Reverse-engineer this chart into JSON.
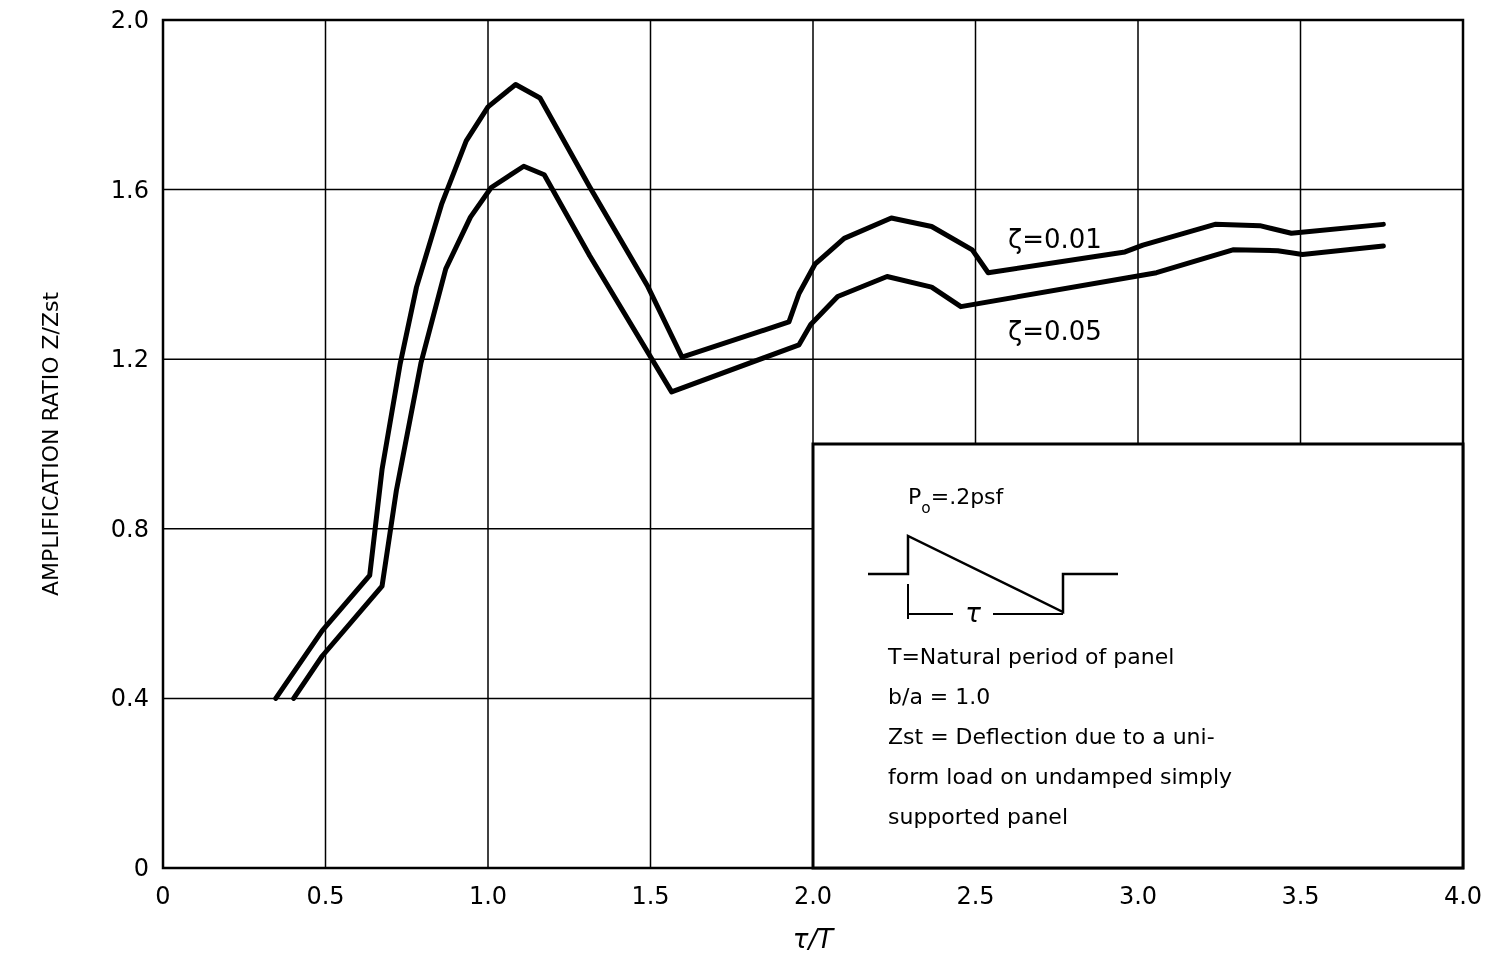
{
  "chart_data": {
    "type": "line",
    "xlabel": "τ/T",
    "ylabel": "AMPLIFICATION RATIO  Z/Zst",
    "xlim": [
      0,
      4
    ],
    "ylim": [
      0,
      2
    ],
    "xticks": [
      0,
      0.5,
      {
        "value": 1,
        "label": "1.0"
      },
      1.5,
      {
        "value": 2,
        "label": "2.0"
      },
      2.5,
      {
        "value": 3,
        "label": "3.0"
      },
      3.5,
      {
        "value": 4,
        "label": "4.0"
      }
    ],
    "yticks": [
      0,
      0.4,
      0.8,
      1.2,
      1.6,
      {
        "value": 2,
        "label": "2.0"
      }
    ],
    "grid": true,
    "marker": "none",
    "line_style": "solid",
    "series": [
      {
        "name": "ζ=0.01",
        "color": "#000000",
        "x": [
          0.347,
          0.49,
          0.636,
          0.674,
          0.73,
          0.78,
          0.857,
          0.933,
          1.0,
          1.085,
          1.16,
          1.313,
          1.49,
          1.597,
          1.926,
          1.957,
          2.006,
          2.096,
          2.241,
          2.365,
          2.49,
          2.539,
          2.96,
          3.015,
          3.237,
          3.375,
          3.472,
          3.755
        ],
        "values": [
          0.4,
          0.56,
          0.69,
          0.94,
          1.19,
          1.37,
          1.565,
          1.715,
          1.795,
          1.848,
          1.816,
          1.606,
          1.374,
          1.205,
          1.288,
          1.355,
          1.424,
          1.485,
          1.533,
          1.513,
          1.458,
          1.404,
          1.453,
          1.469,
          1.518,
          1.515,
          1.497,
          1.518
        ]
      },
      {
        "name": "ζ=0.05",
        "color": "#000000",
        "x": [
          0.402,
          0.49,
          0.674,
          0.718,
          0.794,
          0.87,
          0.946,
          1.01,
          1.11,
          1.173,
          1.313,
          1.565,
          1.957,
          1.993,
          2.076,
          2.228,
          2.365,
          2.455,
          3.057,
          3.292,
          3.43,
          3.506,
          3.755
        ],
        "values": [
          0.4,
          0.5,
          0.665,
          0.89,
          1.192,
          1.413,
          1.535,
          1.605,
          1.655,
          1.635,
          1.444,
          1.123,
          1.234,
          1.282,
          1.348,
          1.395,
          1.37,
          1.324,
          1.404,
          1.458,
          1.456,
          1.447,
          1.467
        ]
      }
    ],
    "annotations": [
      "P$_{o}$=.2psf",
      "τ",
      "T=Natural period of panel",
      "b/a = 1.0",
      "Zst = Deflection due to a uni-",
      "form load on undamped  simply",
      "supported panel"
    ]
  }
}
